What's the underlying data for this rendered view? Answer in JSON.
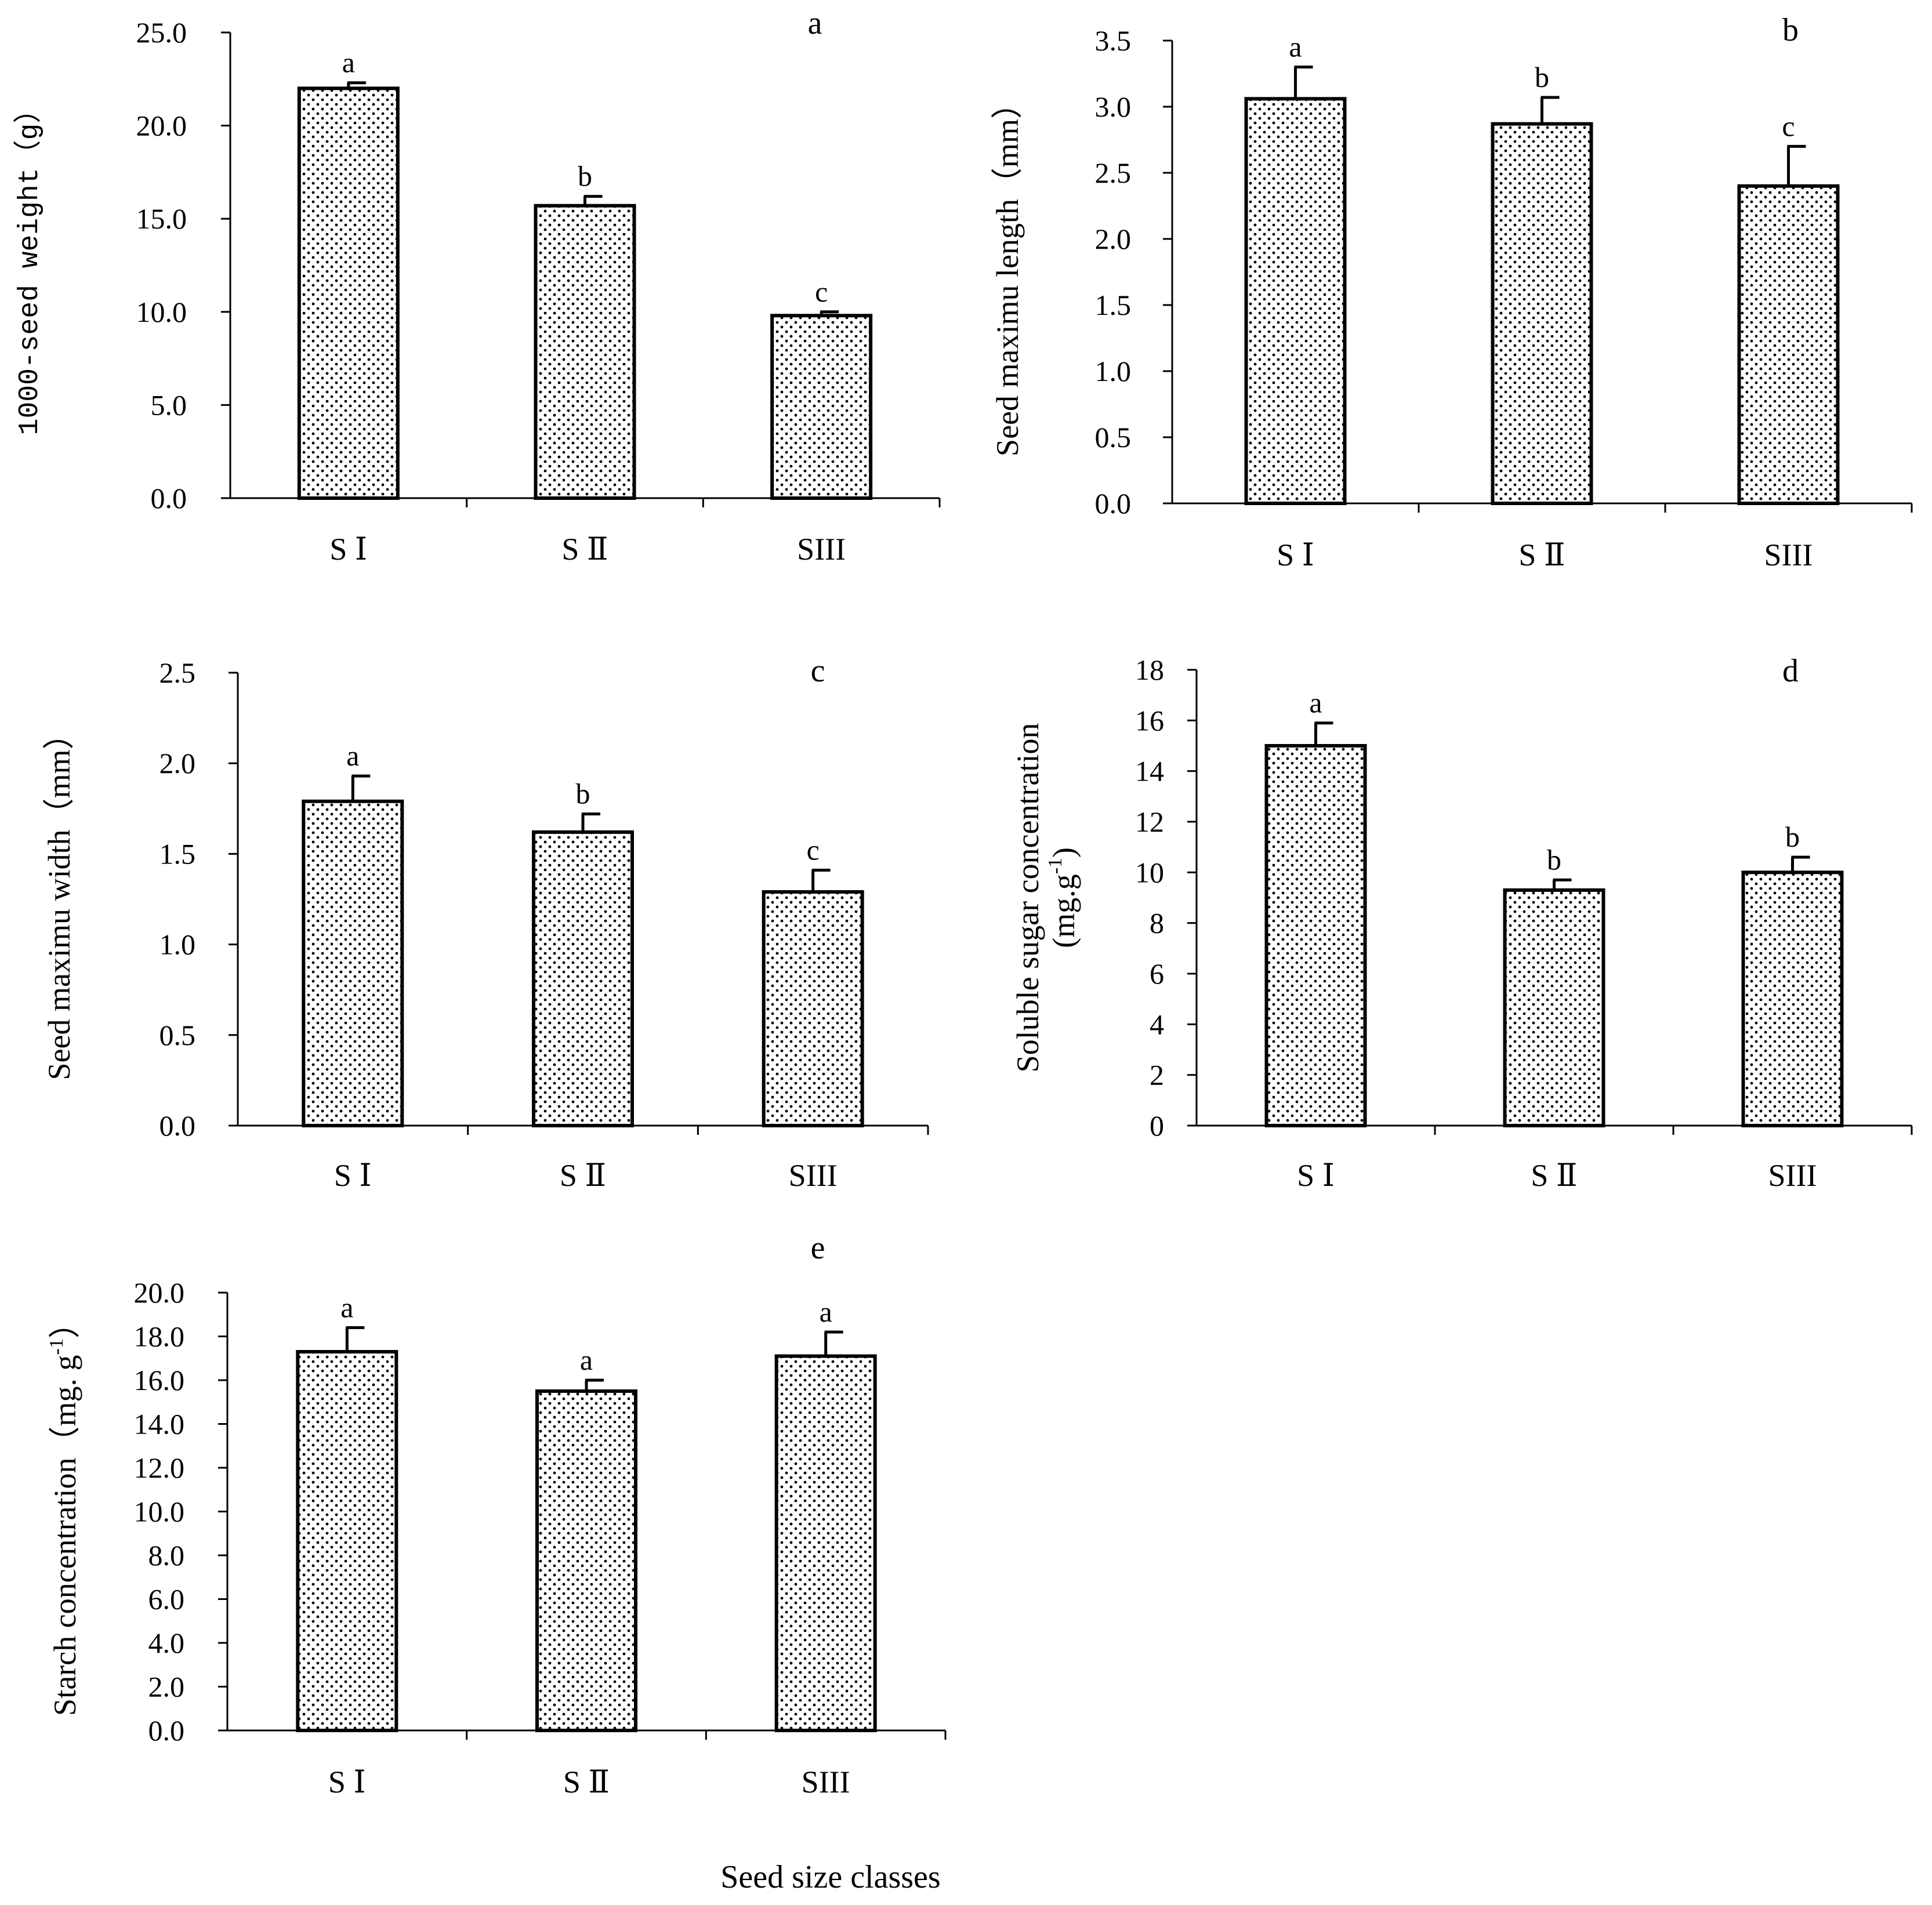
{
  "figure": {
    "xlabel": "Seed size classes"
  },
  "chart_data": [
    {
      "type": "bar",
      "panel": "a",
      "ylabel": "1000-seed weight（g）",
      "ylabel_lines": [
        "1000-seed weight（g）"
      ],
      "categories": [
        "S Ⅰ",
        "S Ⅱ",
        "SIII"
      ],
      "values": [
        22.0,
        15.7,
        9.8
      ],
      "errors": [
        0.3,
        0.5,
        0.2
      ],
      "significance": [
        "a",
        "b",
        "c"
      ],
      "ylim": [
        0,
        25
      ],
      "yticks": [
        0,
        5,
        10,
        15,
        20,
        25
      ],
      "ytick_labels": [
        "0.0",
        "5.0",
        "10.0",
        "15.0",
        "20.0",
        "25.0"
      ],
      "fill_pattern": "dots",
      "bar_color": "#000000"
    },
    {
      "type": "bar",
      "panel": "b",
      "ylabel": "Seed maximu length（mm）",
      "ylabel_lines": [
        "Seed maximu length（mm）"
      ],
      "categories": [
        "S Ⅰ",
        "S Ⅱ",
        "SIII"
      ],
      "values": [
        3.06,
        2.87,
        2.4
      ],
      "errors": [
        0.24,
        0.2,
        0.3
      ],
      "significance": [
        "a",
        "b",
        "c"
      ],
      "ylim": [
        0,
        3.5
      ],
      "yticks": [
        0,
        0.5,
        1,
        1.5,
        2,
        2.5,
        3,
        3.5
      ],
      "ytick_labels": [
        "0.0",
        "0.5",
        "1.0",
        "1.5",
        "2.0",
        "2.5",
        "3.0",
        "3.5"
      ],
      "fill_pattern": "dots",
      "bar_color": "#000000"
    },
    {
      "type": "bar",
      "panel": "c",
      "ylabel": "Seed maximu width（mm）",
      "ylabel_lines": [
        "Seed maximu width（mm）"
      ],
      "categories": [
        "S Ⅰ",
        "S Ⅱ",
        "SIII"
      ],
      "values": [
        1.79,
        1.62,
        1.29
      ],
      "errors": [
        0.14,
        0.1,
        0.12
      ],
      "significance": [
        "a",
        "b",
        "c"
      ],
      "ylim": [
        0,
        2.5
      ],
      "yticks": [
        0,
        0.5,
        1,
        1.5,
        2,
        2.5
      ],
      "ytick_labels": [
        "0.0",
        "0.5",
        "1.0",
        "1.5",
        "2.0",
        "2.5"
      ],
      "fill_pattern": "dots",
      "bar_color": "#000000"
    },
    {
      "type": "bar",
      "panel": "d",
      "ylabel": "Soluble sugar concentration (mg.g-1)",
      "ylabel_lines": [
        "Soluble sugar concentration",
        "(mg.g",
        "-1",
        ")"
      ],
      "categories": [
        "S Ⅰ",
        "S Ⅱ",
        "SIII"
      ],
      "values": [
        15.0,
        9.3,
        10.0
      ],
      "errors": [
        0.9,
        0.4,
        0.6
      ],
      "significance": [
        "a",
        "b",
        "b"
      ],
      "ylim": [
        0,
        18
      ],
      "yticks": [
        0,
        2,
        4,
        6,
        8,
        10,
        12,
        14,
        16,
        18
      ],
      "ytick_labels": [
        "0",
        "2",
        "4",
        "6",
        "8",
        "10",
        "12",
        "14",
        "16",
        "18"
      ],
      "fill_pattern": "dots",
      "bar_color": "#000000"
    },
    {
      "type": "bar",
      "panel": "e",
      "ylabel": "Starch concentration（mg. g-1）",
      "ylabel_lines": [
        "Starch concentration（mg. g",
        "-1",
        "）"
      ],
      "categories": [
        "S Ⅰ",
        "S Ⅱ",
        "SIII"
      ],
      "values": [
        17.3,
        15.5,
        17.1
      ],
      "errors": [
        1.1,
        0.5,
        1.1
      ],
      "significance": [
        "a",
        "a",
        "a"
      ],
      "ylim": [
        0,
        20
      ],
      "yticks": [
        0,
        2,
        4,
        6,
        8,
        10,
        12,
        14,
        16,
        18,
        20
      ],
      "ytick_labels": [
        "0.0",
        "2.0",
        "4.0",
        "6.0",
        "8.0",
        "10.0",
        "12.0",
        "14.0",
        "16.0",
        "18.0",
        "20.0"
      ],
      "fill_pattern": "dots",
      "bar_color": "#000000"
    }
  ]
}
